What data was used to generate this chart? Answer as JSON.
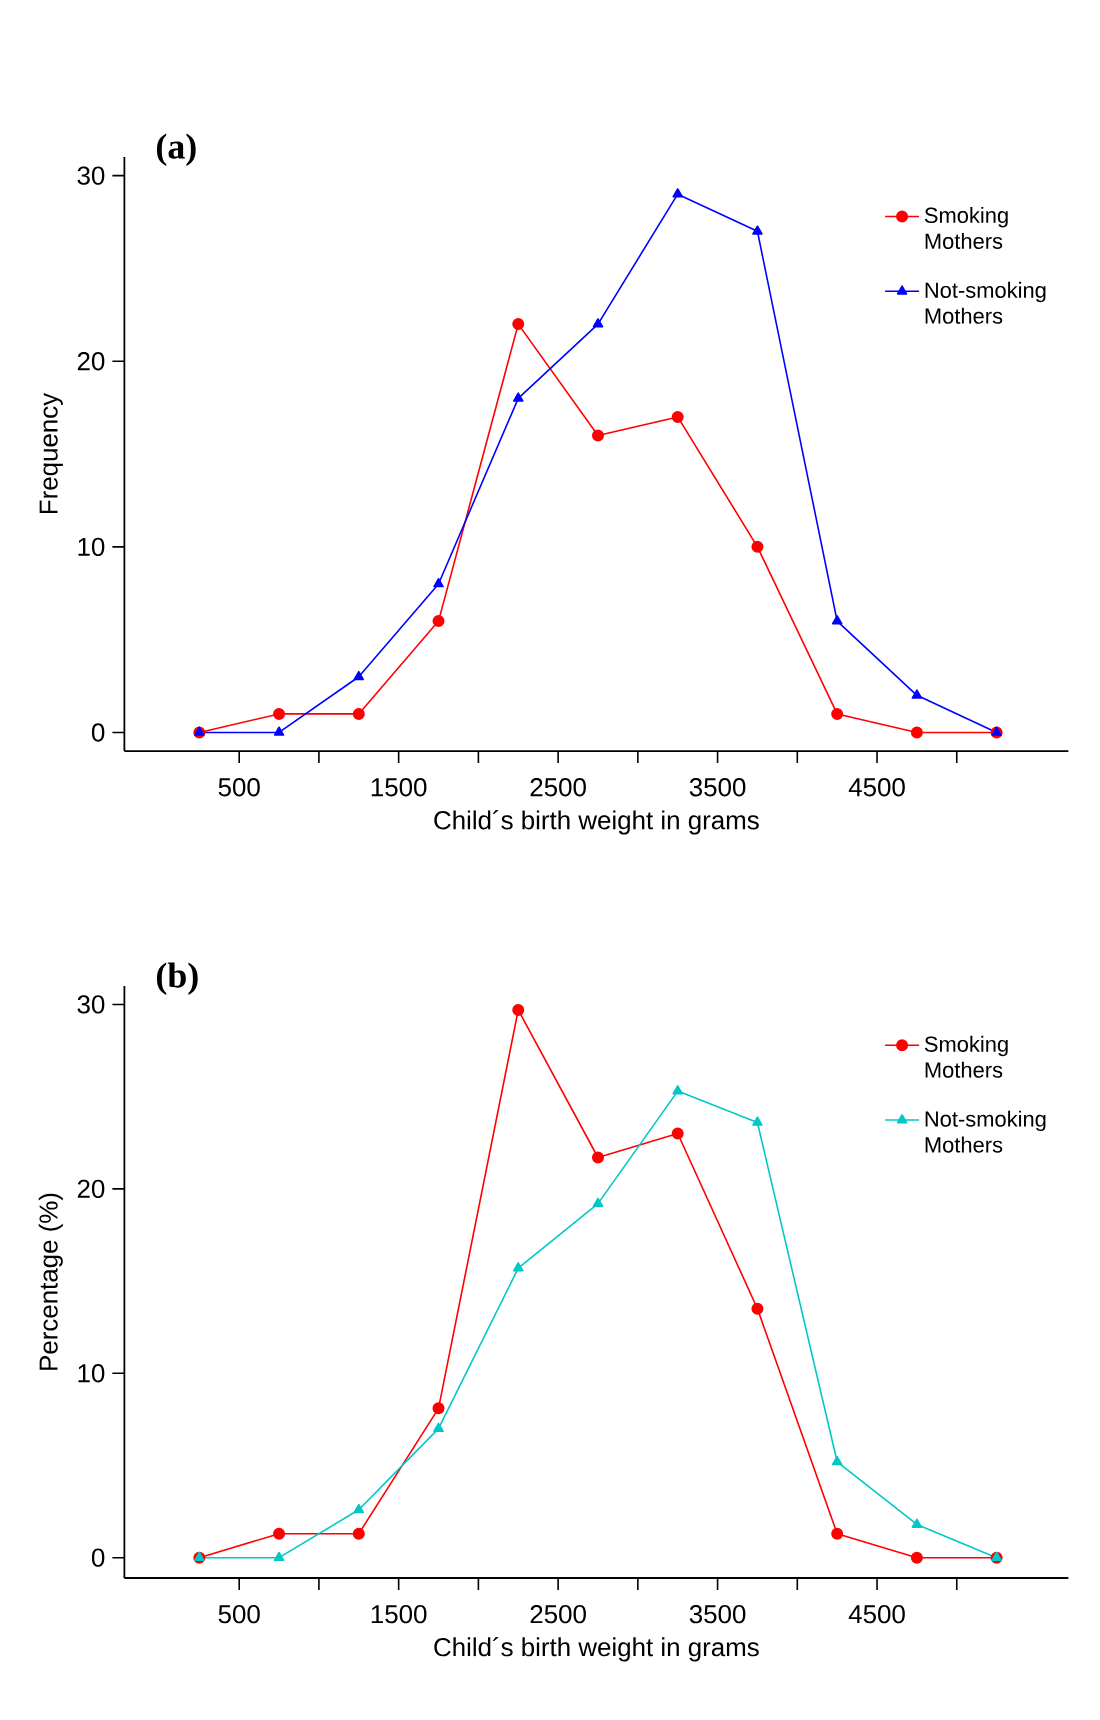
{
  "chart_data": [
    {
      "type": "line",
      "title": "(a)",
      "xlabel": "Child´s birth weight in grams",
      "ylabel": "Frequency",
      "x": [
        250,
        750,
        1250,
        1750,
        2250,
        2750,
        3250,
        3750,
        4250,
        4750,
        5250
      ],
      "xlim": [
        -220,
        5700
      ],
      "ylim": [
        -1,
        31
      ],
      "xticks": [
        500,
        {
          "value": 1000,
          "label": null
        },
        1500,
        {
          "value": 2000,
          "label": null
        },
        2500,
        {
          "value": 3000,
          "label": null
        },
        3500,
        {
          "value": 4000,
          "label": null
        },
        4500,
        {
          "value": 5000,
          "label": null
        }
      ],
      "yticks": [
        0,
        10,
        20,
        30
      ],
      "legend": "top right",
      "series": [
        {
          "name": "Smoking Mothers",
          "color": "#ff0000",
          "marker": "circle",
          "values": [
            0,
            1,
            1,
            6,
            22,
            16,
            17,
            10,
            1,
            0,
            0
          ]
        },
        {
          "name": "Not-smoking Mothers",
          "color": "#0000ff",
          "marker": "triangle",
          "values": [
            0,
            0,
            3,
            8,
            18,
            22,
            29,
            27,
            6,
            2,
            0
          ]
        }
      ]
    },
    {
      "type": "line",
      "title": "(b)",
      "xlabel": "Child´s birth weight in grams",
      "ylabel": "Percentage (%)",
      "x": [
        250,
        750,
        1250,
        1750,
        2250,
        2750,
        3250,
        3750,
        4250,
        4750,
        5250
      ],
      "xlim": [
        -220,
        5700
      ],
      "ylim": [
        -1.1,
        31
      ],
      "xticks": [
        500,
        {
          "value": 1000,
          "label": null
        },
        1500,
        {
          "value": 2000,
          "label": null
        },
        2500,
        {
          "value": 3000,
          "label": null
        },
        3500,
        {
          "value": 4000,
          "label": null
        },
        4500,
        {
          "value": 5000,
          "label": null
        }
      ],
      "yticks": [
        0,
        10,
        20,
        30
      ],
      "legend": "top right",
      "series": [
        {
          "name": "Smoking Mothers",
          "color": "#ff0000",
          "marker": "circle",
          "values": [
            0,
            1.3,
            1.3,
            8.1,
            29.7,
            21.7,
            23.0,
            13.5,
            1.3,
            0,
            0
          ]
        },
        {
          "name": "Not-smoking Mothers",
          "color": "#00c8c8",
          "marker": "triangle",
          "values": [
            0,
            0,
            2.6,
            7.0,
            15.7,
            19.2,
            25.3,
            23.6,
            5.2,
            1.8,
            0
          ]
        }
      ]
    }
  ]
}
